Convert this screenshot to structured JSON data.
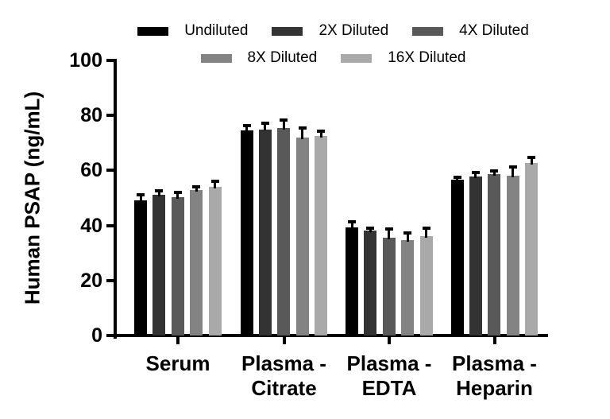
{
  "chart_data": {
    "type": "bar",
    "title": "",
    "ylabel": "Human PSAP (ng/mL)",
    "xlabel": "",
    "ylim": [
      0,
      100
    ],
    "yticks": [
      0,
      20,
      40,
      60,
      80,
      100
    ],
    "grid": false,
    "legend_position": "top",
    "background_color": "#ffffff",
    "axis_color": "#000000",
    "error_bar_color": "#000000",
    "categories": [
      [
        "Serum"
      ],
      [
        "Plasma -",
        "Citrate"
      ],
      [
        "Plasma -",
        "EDTA"
      ],
      [
        "Plasma -",
        "Heparin"
      ]
    ],
    "series": [
      {
        "name": "Undiluted",
        "color": "#000000",
        "values": [
          49.0,
          74.5,
          39.4,
          56.6
        ],
        "errors": [
          2.0,
          1.6,
          1.5,
          0.5
        ]
      },
      {
        "name": "2X Diluted",
        "color": "#333333",
        "values": [
          51.2,
          75.0,
          38.2,
          57.9
        ],
        "errors": [
          1.2,
          2.0,
          0.6,
          1.1
        ]
      },
      {
        "name": "4X Diluted",
        "color": "#595959",
        "values": [
          50.4,
          75.3,
          35.5,
          58.6
        ],
        "errors": [
          1.2,
          2.8,
          3.0,
          0.9
        ]
      },
      {
        "name": "8X Diluted",
        "color": "#838383",
        "values": [
          52.9,
          71.9,
          34.6,
          58.2
        ],
        "errors": [
          0.9,
          3.2,
          2.4,
          2.9
        ]
      },
      {
        "name": "16X Diluted",
        "color": "#a9a9a9",
        "values": [
          54.0,
          72.6,
          36.2,
          62.7
        ],
        "errors": [
          1.7,
          1.4,
          2.6,
          1.7
        ]
      }
    ]
  }
}
